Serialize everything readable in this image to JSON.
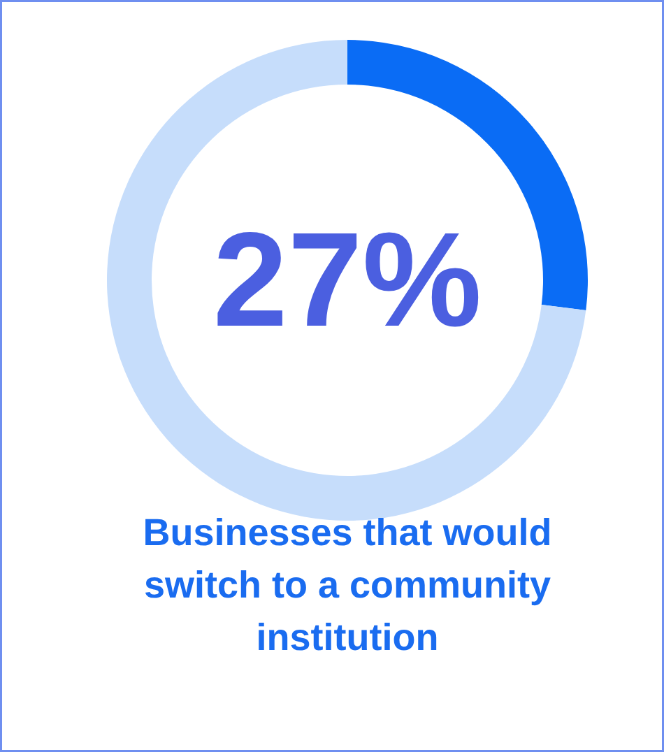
{
  "chart_data": {
    "type": "donut",
    "title": "Businesses that would switch to a community institution",
    "categories": [
      null,
      null
    ],
    "values": [
      27,
      73
    ],
    "colors": [
      "#0a6cf5",
      "#c6ddfb"
    ],
    "value_labels": [
      "27%",
      null
    ]
  }
}
